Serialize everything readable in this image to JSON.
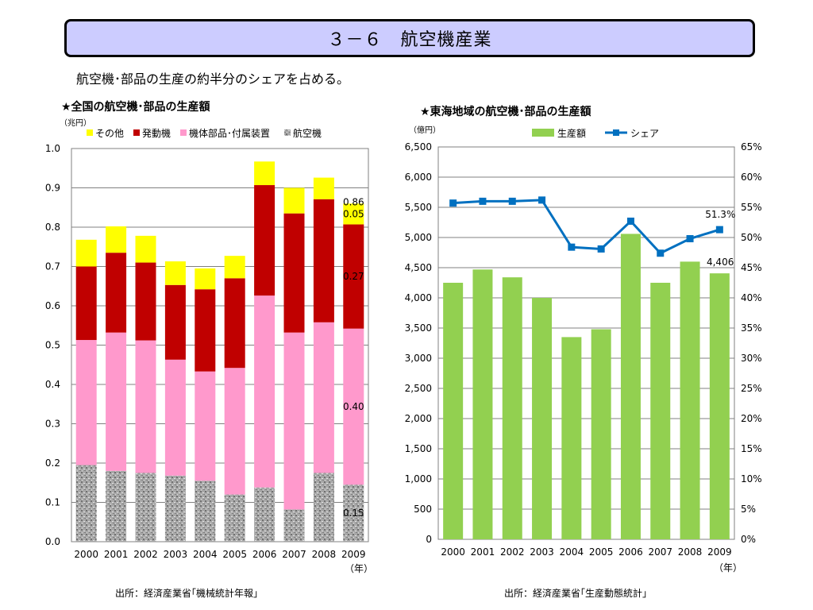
{
  "slide": {
    "title": "３－６　航空機産業",
    "subtitle": "航空機･部品の生産の約半分のシェアを占める。"
  },
  "chart_data": [
    {
      "type": "bar",
      "stacked": true,
      "title": "★全国の航空機･部品の生産額",
      "unit_label": "（兆円）",
      "x_unit_label": "（年）",
      "categories": [
        "2000",
        "2001",
        "2002",
        "2003",
        "2004",
        "2005",
        "2006",
        "2007",
        "2008",
        "2009"
      ],
      "ylim": [
        0,
        1.0
      ],
      "y_ticks": [
        "0.0",
        "0.1",
        "0.2",
        "0.3",
        "0.4",
        "0.5",
        "0.6",
        "0.7",
        "0.8",
        "0.9",
        "1.0"
      ],
      "legend_position": "top",
      "series": [
        {
          "name": "航空機",
          "color": "#a6a6a6",
          "values": [
            0.195,
            0.18,
            0.175,
            0.168,
            0.155,
            0.12,
            0.138,
            0.082,
            0.175,
            0.145
          ]
        },
        {
          "name": "機体部品･付属装置",
          "color": "#ff99cc",
          "values": [
            0.318,
            0.352,
            0.337,
            0.295,
            0.278,
            0.322,
            0.488,
            0.45,
            0.383,
            0.397
          ]
        },
        {
          "name": "発動機",
          "color": "#c00000",
          "values": [
            0.187,
            0.203,
            0.198,
            0.19,
            0.209,
            0.228,
            0.281,
            0.303,
            0.313,
            0.265
          ]
        },
        {
          "name": "その他",
          "color": "#ffff00",
          "values": [
            0.068,
            0.067,
            0.068,
            0.06,
            0.053,
            0.057,
            0.06,
            0.065,
            0.055,
            0.053
          ]
        }
      ],
      "legend_order": [
        "その他",
        "発動機",
        "機体部品･付属装置",
        "航空機"
      ],
      "data_labels": [
        "0.86",
        "0.05",
        "0.27",
        "0.40",
        "0.15"
      ],
      "source": "出所：経済産業省｢機械統計年報｣"
    },
    {
      "type": "bar",
      "combo_line": true,
      "title": "★東海地域の航空機･部品の生産額",
      "unit_label": "（億円）",
      "x_unit_label": "（年）",
      "categories": [
        "2000",
        "2001",
        "2002",
        "2003",
        "2004",
        "2005",
        "2006",
        "2007",
        "2008",
        "2009"
      ],
      "ylim": [
        0,
        6500
      ],
      "y_ticks": [
        "0",
        "500",
        "1,000",
        "1,500",
        "2,000",
        "2,500",
        "3,000",
        "3,500",
        "4,000",
        "4,500",
        "5,000",
        "5,500",
        "6,000",
        "6,500"
      ],
      "y2lim": [
        0,
        65
      ],
      "y2_ticks": [
        "0%",
        "5%",
        "10%",
        "15%",
        "20%",
        "25%",
        "30%",
        "35%",
        "40%",
        "45%",
        "50%",
        "55%",
        "60%",
        "65%"
      ],
      "legend_position": "top",
      "series": [
        {
          "name": "生産額",
          "color": "#92d050",
          "axis": "left",
          "values": [
            4250,
            4470,
            4340,
            4000,
            3350,
            3480,
            5060,
            4250,
            4600,
            4406
          ]
        },
        {
          "name": "シェア",
          "color": "#0070c0",
          "axis": "right",
          "values": [
            55.7,
            56.0,
            56.0,
            56.2,
            48.4,
            48.1,
            52.7,
            47.4,
            49.8,
            51.3
          ]
        }
      ],
      "data_labels": [
        "51.3%",
        "4,406"
      ],
      "source": "出所：経済産業省｢生産動態統計｣"
    }
  ]
}
